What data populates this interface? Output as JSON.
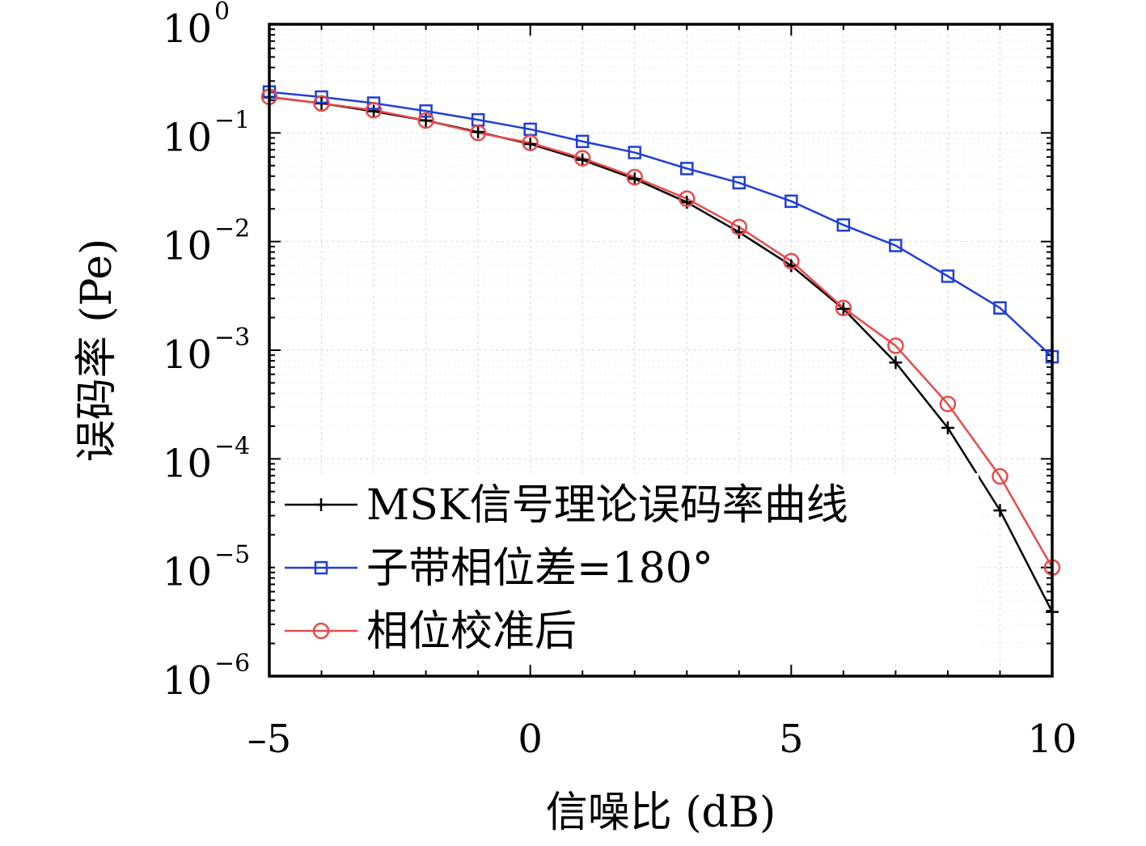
{
  "chart_data": {
    "type": "line",
    "xlabel": "信噪比 (dB)",
    "ylabel": "误码率 (Pe)",
    "xlim": [
      -5,
      10
    ],
    "ylim": [
      1e-06,
      1
    ],
    "yscale": "log",
    "grid": true,
    "legend_position": "bottom-left",
    "x_ticks": [
      "–5",
      "0",
      "5",
      "10"
    ],
    "y_ticks": [
      {
        "base": "10",
        "exp": "0"
      },
      {
        "base": "10",
        "exp": "−1"
      },
      {
        "base": "10",
        "exp": "−2"
      },
      {
        "base": "10",
        "exp": "−3"
      },
      {
        "base": "10",
        "exp": "−4"
      },
      {
        "base": "10",
        "exp": "−5"
      },
      {
        "base": "10",
        "exp": "−6"
      }
    ],
    "x": [
      -5,
      -4,
      -3,
      -2,
      -1,
      0,
      1,
      2,
      3,
      4,
      5,
      6,
      7,
      8,
      9,
      10
    ],
    "series": [
      {
        "name": "MSK信号理论误码率曲线",
        "color": "#000000",
        "marker": "plus",
        "values": [
          0.214,
          0.187,
          0.158,
          0.13,
          0.102,
          0.079,
          0.0565,
          0.0377,
          0.023,
          0.0122,
          0.006,
          0.0024,
          0.00077,
          0.000193,
          3.35e-05,
          3.9e-06
        ]
      },
      {
        "name": "子带相位差=180°",
        "color": "#1f3fd8",
        "marker": "square",
        "values": [
          0.238,
          0.214,
          0.188,
          0.159,
          0.132,
          0.108,
          0.0835,
          0.066,
          0.047,
          0.0348,
          0.0235,
          0.0142,
          0.0092,
          0.0048,
          0.00245,
          0.00087
        ]
      },
      {
        "name": "相位校准后",
        "color": "#e84a4a",
        "marker": "circle",
        "values": [
          0.215,
          0.187,
          0.162,
          0.13,
          0.1,
          0.081,
          0.0585,
          0.0392,
          0.0248,
          0.0136,
          0.0066,
          0.00245,
          0.0011,
          0.00032,
          6.9e-05,
          1e-05
        ]
      }
    ]
  }
}
